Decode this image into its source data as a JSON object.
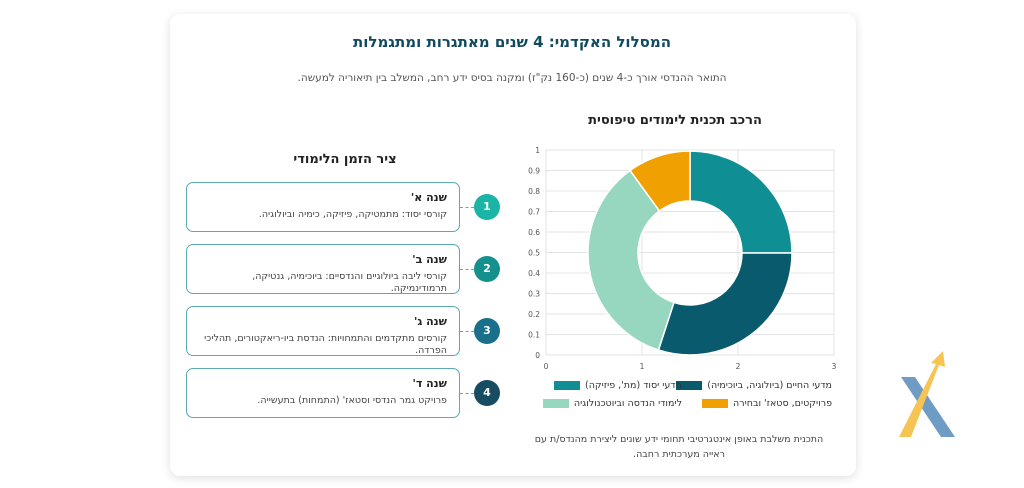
{
  "header": {
    "title": "המסלול האקדמי: 4 שנים מאתגרות ומתגמלות",
    "subtitle": "התואר ההנדסי אורך כ-4 שנים (כ-160 נק\"ז) ומקנה בסיס ידע רחב, המשלב בין תיאוריה למעשה."
  },
  "timeline": {
    "title": "ציר הזמן הלימודי",
    "items": [
      {
        "num": "1",
        "title": "שנה א'",
        "desc": "קורסי יסוד: מתמטיקה, פיזיקה, כימיה וביולוגיה.",
        "color": "#1bb5a8"
      },
      {
        "num": "2",
        "title": "שנה ב'",
        "desc": "קורסי ליבה ביולוגיים והנדסיים: ביוכימיה, גנטיקה, תרמודינמיקה.",
        "color": "#14918c"
      },
      {
        "num": "3",
        "title": "שנה ג'",
        "desc": "קורסים מתקדמים והתמחויות: הנדסת ביו-ריאקטורים, תהליכי הפרדה.",
        "color": "#1a6f8a"
      },
      {
        "num": "4",
        "title": "שנה ד'",
        "desc": "פרויקט גמר הנדסי וסטאז' (התמחות) בתעשייה.",
        "color": "#164d62"
      }
    ]
  },
  "chart": {
    "title": "הרכב תכנית לימודים טיפוסית",
    "note": "התכנית משלבת באופן אינטגרטיבי תחומי ידע שונים ליצירת מהנדס/ת עם ראייה מערכתית רחבה."
  },
  "chart_data": {
    "type": "pie",
    "title": "הרכב תכנית לימודים טיפוסית",
    "series": [
      {
        "name": "מדעי יסוד (מת', פיזיקה)",
        "value": 25,
        "color": "#0f8f93"
      },
      {
        "name": "מדעי החיים (ביולוגיה, ביוכימיה)",
        "value": 30,
        "color": "#0a5a6e"
      },
      {
        "name": "לימודי הנדסה וביוטכנולוגיה",
        "value": 35,
        "color": "#97d6bf"
      },
      {
        "name": "פרויקטים, סטאז' ובחירה",
        "value": 10,
        "color": "#f0a000"
      }
    ],
    "x_ticks": [
      "0",
      "1",
      "2",
      "3"
    ],
    "y_ticks": [
      "0",
      "0.1",
      "0.2",
      "0.3",
      "0.4",
      "0.5",
      "0.6",
      "0.7",
      "0.8",
      "0.9",
      "1"
    ],
    "grid": true,
    "legend_position": "bottom"
  },
  "logo": {
    "colors": [
      "#f6c453",
      "#6f9cc4"
    ]
  }
}
